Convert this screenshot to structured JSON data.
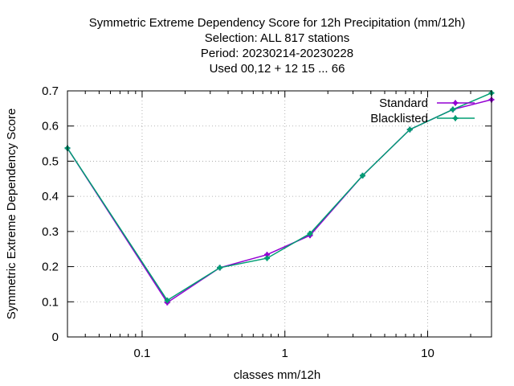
{
  "chart_data": {
    "type": "line",
    "title_lines": [
      "Symmetric Extreme Dependency Score  for 12h Precipitation (mm/12h)",
      "Selection: ALL    817 stations",
      "Period: 20230214-20230228",
      "Used  00,12  + 12 15 ... 66"
    ],
    "xlabel": "classes mm/12h",
    "ylabel": "Symmetric Extreme Dependency Score",
    "xscale": "log",
    "xlim": [
      0.03,
      28
    ],
    "ylim": [
      0,
      0.7
    ],
    "x_ticks": [
      {
        "value": 0.1,
        "label": "0.1"
      },
      {
        "value": 1,
        "label": "1"
      },
      {
        "value": 10,
        "label": "10"
      }
    ],
    "y_ticks": [
      {
        "value": 0,
        "label": "0"
      },
      {
        "value": 0.1,
        "label": "0.1"
      },
      {
        "value": 0.2,
        "label": "0.2"
      },
      {
        "value": 0.3,
        "label": "0.3"
      },
      {
        "value": 0.4,
        "label": "0.4"
      },
      {
        "value": 0.5,
        "label": "0.5"
      },
      {
        "value": 0.6,
        "label": "0.6"
      },
      {
        "value": 0.7,
        "label": "0.7"
      }
    ],
    "grid": true,
    "legend_position": "top-right",
    "x": [
      0.03,
      0.15,
      0.35,
      0.75,
      1.5,
      3.5,
      7.5,
      15,
      28
    ],
    "series": [
      {
        "name": "Standard",
        "color": "#9400d3",
        "values": [
          0.537,
          0.098,
          0.197,
          0.234,
          0.289,
          0.459,
          0.59,
          0.647,
          0.675
        ]
      },
      {
        "name": "Blacklisted",
        "color": "#009e73",
        "values": [
          0.537,
          0.104,
          0.197,
          0.224,
          0.294,
          0.459,
          0.59,
          0.647,
          0.694
        ]
      }
    ]
  }
}
